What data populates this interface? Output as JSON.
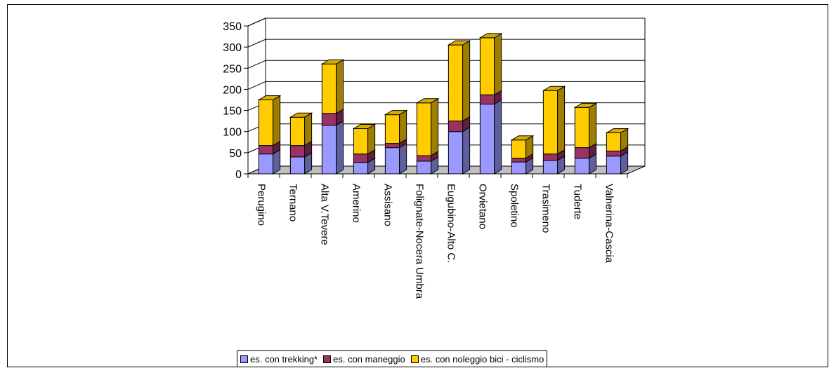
{
  "chart_data": {
    "type": "bar",
    "stacked": true,
    "three_d": true,
    "categories": [
      "Perugino",
      "Ternano",
      "Alta V.Tevere",
      "Amerino",
      "Assisano",
      "Folignate-Nocera Umbra",
      "Eugubino-Alto C.",
      "Orvietano",
      "Spoletino",
      "Trasimeno",
      "Tuderte",
      "Valnerina-Cascia"
    ],
    "series": [
      {
        "name": "es. con trekking*",
        "color": "#9999ff",
        "values": [
          47,
          40,
          115,
          27,
          62,
          30,
          100,
          165,
          28,
          32,
          37,
          42
        ]
      },
      {
        "name": "es. con maneggio",
        "color": "#993366",
        "values": [
          20,
          27,
          28,
          20,
          10,
          13,
          25,
          22,
          9,
          15,
          25,
          12
        ]
      },
      {
        "name": "es. con noleggio bici - ciclismo",
        "color": "#ffcc00",
        "values": [
          108,
          67,
          117,
          60,
          68,
          125,
          180,
          135,
          43,
          150,
          95,
          43
        ]
      }
    ],
    "ylim": [
      0,
      350
    ],
    "yticks": [
      "0",
      "50",
      "100",
      "150",
      "200",
      "250",
      "300",
      "350"
    ],
    "grid": true,
    "legend_position": "bottom",
    "xlabel": "",
    "ylabel": "",
    "title": ""
  }
}
